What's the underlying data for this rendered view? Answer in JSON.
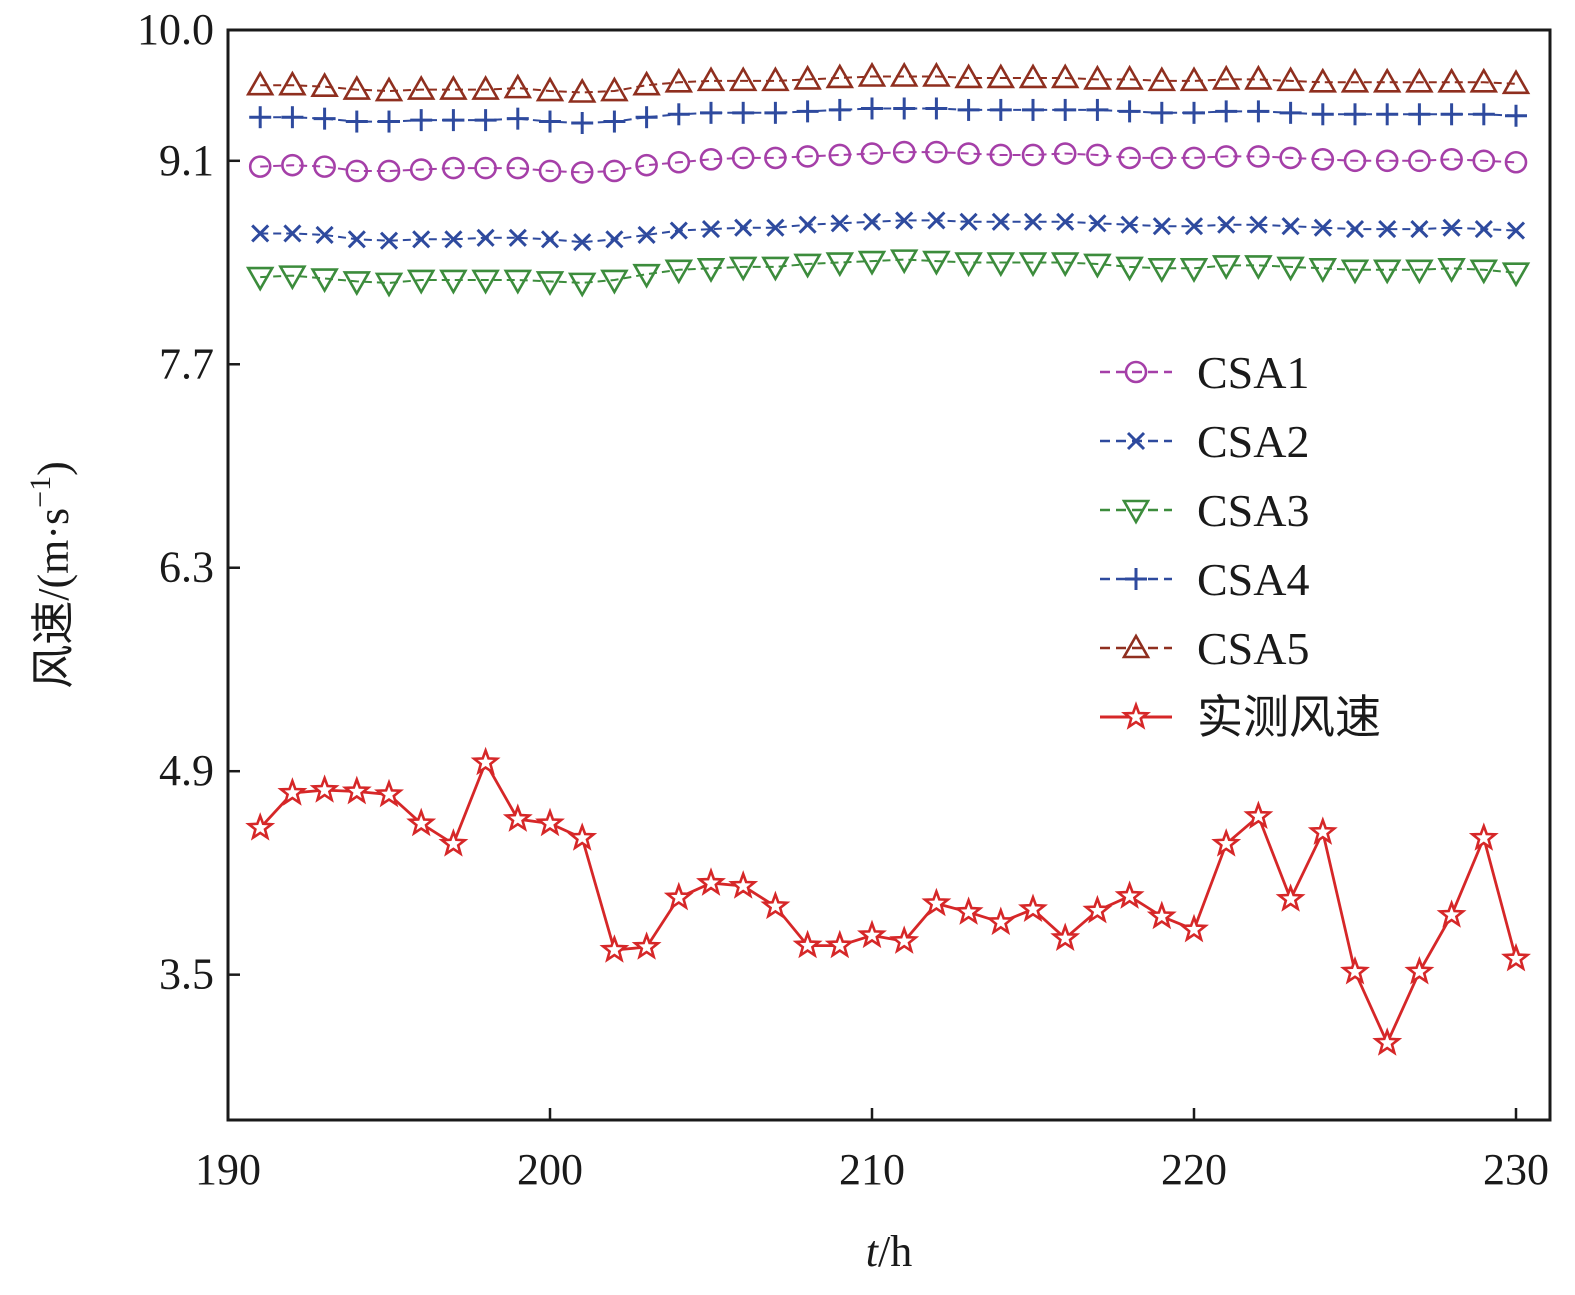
{
  "chart_data": {
    "type": "line",
    "title": "",
    "xlabel_italic": "t",
    "xlabel_rest": "/h",
    "ylabel_main": "风速/(m·s",
    "ylabel_sup": "−1",
    "ylabel_close": ")",
    "xlim": [
      190,
      231
    ],
    "ylim": [
      2.5,
      10.0
    ],
    "xticks": [
      190,
      200,
      210,
      220,
      230
    ],
    "yticks": [
      3.5,
      4.9,
      6.3,
      7.7,
      9.1,
      10.0
    ],
    "ytick_labels": [
      "3.5",
      "4.9",
      "6.3",
      "7.7",
      "9.1",
      "10.0"
    ],
    "legend_position": "right",
    "x": [
      191,
      192,
      193,
      194,
      195,
      196,
      197,
      198,
      199,
      200,
      201,
      202,
      203,
      204,
      205,
      206,
      207,
      208,
      209,
      210,
      211,
      212,
      213,
      214,
      215,
      216,
      217,
      218,
      219,
      220,
      221,
      222,
      223,
      224,
      225,
      226,
      227,
      228,
      229,
      230
    ],
    "series": [
      {
        "name": "CSA1",
        "marker": "circle",
        "color": "#a53fa8",
        "dash": true,
        "values": [
          9.06,
          9.07,
          9.06,
          9.03,
          9.03,
          9.04,
          9.05,
          9.05,
          9.05,
          9.03,
          9.02,
          9.03,
          9.07,
          9.09,
          9.11,
          9.12,
          9.12,
          9.13,
          9.14,
          9.15,
          9.16,
          9.16,
          9.15,
          9.14,
          9.14,
          9.15,
          9.14,
          9.12,
          9.12,
          9.12,
          9.13,
          9.13,
          9.12,
          9.11,
          9.1,
          9.1,
          9.1,
          9.11,
          9.1,
          9.09
        ]
      },
      {
        "name": "CSA2",
        "marker": "x",
        "color": "#2e4a9e",
        "dash": true,
        "values": [
          8.6,
          8.6,
          8.59,
          8.56,
          8.55,
          8.56,
          8.56,
          8.57,
          8.57,
          8.56,
          8.54,
          8.56,
          8.59,
          8.62,
          8.63,
          8.64,
          8.64,
          8.66,
          8.67,
          8.68,
          8.69,
          8.69,
          8.68,
          8.68,
          8.68,
          8.68,
          8.67,
          8.66,
          8.65,
          8.65,
          8.66,
          8.66,
          8.65,
          8.64,
          8.63,
          8.63,
          8.63,
          8.64,
          8.63,
          8.62
        ]
      },
      {
        "name": "CSA3",
        "marker": "triangle-down",
        "color": "#3c8c3c",
        "dash": true,
        "values": [
          8.3,
          8.31,
          8.29,
          8.27,
          8.26,
          8.28,
          8.28,
          8.28,
          8.28,
          8.27,
          8.26,
          8.28,
          8.32,
          8.35,
          8.36,
          8.37,
          8.37,
          8.39,
          8.4,
          8.41,
          8.42,
          8.41,
          8.4,
          8.4,
          8.4,
          8.4,
          8.39,
          8.37,
          8.36,
          8.36,
          8.38,
          8.38,
          8.37,
          8.36,
          8.35,
          8.35,
          8.35,
          8.36,
          8.35,
          8.33
        ]
      },
      {
        "name": "CSA4",
        "marker": "plus",
        "color": "#2e4a9e",
        "dash": true,
        "values": [
          9.4,
          9.4,
          9.39,
          9.37,
          9.37,
          9.38,
          9.38,
          9.38,
          9.39,
          9.37,
          9.36,
          9.37,
          9.4,
          9.42,
          9.43,
          9.43,
          9.43,
          9.44,
          9.45,
          9.46,
          9.46,
          9.46,
          9.45,
          9.45,
          9.45,
          9.45,
          9.45,
          9.44,
          9.43,
          9.43,
          9.44,
          9.44,
          9.43,
          9.42,
          9.42,
          9.42,
          9.42,
          9.42,
          9.42,
          9.41
        ]
      },
      {
        "name": "CSA5",
        "marker": "triangle-up",
        "color": "#8f2f1f",
        "dash": true,
        "values": [
          9.62,
          9.62,
          9.61,
          9.59,
          9.58,
          9.59,
          9.59,
          9.59,
          9.6,
          9.58,
          9.57,
          9.58,
          9.62,
          9.64,
          9.65,
          9.65,
          9.65,
          9.66,
          9.67,
          9.68,
          9.68,
          9.68,
          9.67,
          9.67,
          9.67,
          9.67,
          9.66,
          9.66,
          9.65,
          9.65,
          9.66,
          9.66,
          9.65,
          9.64,
          9.64,
          9.64,
          9.64,
          9.64,
          9.64,
          9.63
        ]
      },
      {
        "name": "实测风速",
        "marker": "star",
        "color": "#d62728",
        "dash": false,
        "values": [
          4.51,
          4.75,
          4.77,
          4.76,
          4.74,
          4.54,
          4.4,
          4.96,
          4.57,
          4.54,
          4.44,
          3.67,
          3.69,
          4.03,
          4.13,
          4.11,
          3.97,
          3.7,
          3.7,
          3.77,
          3.73,
          3.99,
          3.93,
          3.86,
          3.95,
          3.75,
          3.94,
          4.04,
          3.9,
          3.81,
          4.4,
          4.59,
          4.02,
          4.48,
          3.52,
          3.03,
          3.52,
          3.91,
          4.44,
          3.61
        ]
      }
    ]
  }
}
